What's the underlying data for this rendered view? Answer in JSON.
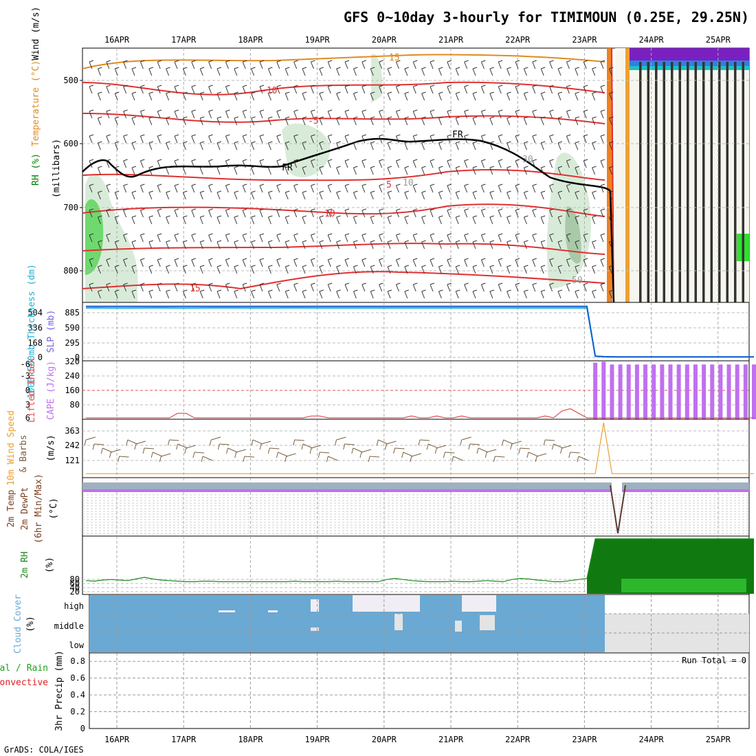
{
  "title": "GFS 0~10day 3-hourly for TIMIMOUN (0.25E, 29.25N)",
  "credit": "GrADS: COLA/IGES",
  "colors": {
    "temperature": "#e03030",
    "freezing": "#000000",
    "rh_fill": "#d8ebd8",
    "slp": "#1060d0",
    "thickness": "#20b0d0",
    "cape": "#c070f0",
    "lifted_index": "#e05050",
    "wind_speed": "#e8a030",
    "barbs": "#7a6040",
    "rh2m": "#1a8a1a",
    "cloud": "#6aa9d4",
    "rain": "#20a020",
    "convective": "#e02020"
  },
  "dates": [
    "16APR",
    "17APR",
    "18APR",
    "19APR",
    "20APR",
    "21APR",
    "22APR",
    "23APR",
    "24APR",
    "25APR"
  ],
  "panels": {
    "upper": {
      "ylabel_wind": "Wind (m/s)",
      "ylabel_temp": "Temperature (°C)",
      "ylabel_rh": "RH (%)",
      "ylabel_p": "(millibars)",
      "yticks": [
        "500",
        "600",
        "700",
        "800"
      ],
      "contour_labels": {
        "t15": "15",
        "tm10": "-10",
        "tm5": "-5",
        "t5": "5",
        "t10": "10",
        "t15b": "15",
        "fr1": "FR",
        "fr2": "FR",
        "rh30": "30",
        "rh10": "10",
        "rh50": "50"
      }
    },
    "slp": {
      "ylabel_thk": "1000-500mb Thickness (dm)",
      "ylabel_slp": "SLP (mb)",
      "left_ticks": [
        "504",
        "336",
        "168",
        "0"
      ],
      "right_ticks": [
        "885",
        "590",
        "295",
        "0"
      ]
    },
    "cape": {
      "ylabel_li": "Lifted Index",
      "ylabel_cape": "CAPE (J/kg)",
      "left_ticks": [
        "-6",
        "-3",
        "0",
        "3",
        "6"
      ],
      "right_ticks": [
        "320",
        "240",
        "160",
        "80"
      ]
    },
    "wind10": {
      "ylabel_speed": "10m Wind Speed",
      "ylabel_barbs": "& Barbs",
      "ylabel_unit": "(m/s)",
      "ticks": [
        "363",
        "242",
        "121"
      ]
    },
    "temp2m": {
      "ylabel_1": "2m Temp",
      "ylabel_2": "2m DewPt",
      "ylabel_3": "(6hr Min/Max)",
      "ylabel_unit": "(°C)"
    },
    "rh2m": {
      "ylabel": "2m RH",
      "ylabel_unit": "(%)",
      "ticks": [
        "80",
        "60",
        "40",
        "20"
      ]
    },
    "cloud": {
      "ylabel": "Cloud Cover",
      "ylabel_unit": "(%)",
      "levels": [
        "high",
        "middle",
        "low"
      ]
    },
    "precip": {
      "ylabel_1": "Total / Rain",
      "ylabel_2": "Convective",
      "ylabel_3": "3hr Precip (mm)",
      "ticks": [
        "0.8",
        "0.6",
        "0.4",
        "0.2",
        "0"
      ],
      "run_total": "Run Total = 0"
    }
  },
  "chart_data": {
    "type": "line",
    "x_start": "15APR 12Z",
    "x_step_hours": 3,
    "x_ticks": [
      "16APR",
      "17APR",
      "18APR",
      "19APR",
      "20APR",
      "21APR",
      "22APR",
      "23APR",
      "24APR",
      "25APR"
    ],
    "series": [
      {
        "name": "SLP (mb)",
        "values": [
          1020,
          1021,
          1021,
          1020,
          1020,
          1019,
          1020,
          1020,
          1021,
          1021,
          1020,
          1020,
          1020,
          1019,
          1020,
          1020,
          1021,
          1021,
          1021,
          1020,
          1020,
          1020,
          1020,
          1020,
          1021,
          1021,
          1021,
          1020,
          1020,
          1020,
          1020,
          1020,
          1020,
          1020,
          1020,
          1020,
          1020,
          1020,
          1020,
          1020,
          1020,
          1020,
          1020,
          1020,
          1020,
          1020,
          1020,
          1020,
          1020,
          1020,
          1020,
          1020,
          1020,
          1020,
          1020,
          1020,
          1020,
          1020,
          1020,
          1020,
          1020,
          25,
          15,
          12,
          10,
          10,
          10,
          10,
          10,
          10,
          10,
          10,
          10,
          10,
          10,
          10,
          10,
          10,
          10,
          10,
          10
        ]
      },
      {
        "name": "1000-500mb Thickness (dm)",
        "values": [
          580,
          582,
          581,
          580,
          580,
          580,
          581,
          581,
          582,
          582,
          581,
          580,
          580,
          580,
          581,
          582,
          582,
          582,
          582,
          581,
          581,
          581,
          581,
          581,
          582,
          582,
          582,
          581,
          581,
          581,
          581,
          581,
          581,
          581,
          581,
          581,
          581,
          581,
          581,
          581,
          581,
          581,
          581,
          581,
          581,
          581,
          581,
          581,
          581,
          581,
          581,
          581,
          581,
          581,
          581,
          581,
          581,
          581,
          581,
          581,
          581,
          14,
          8,
          6,
          5,
          5,
          5,
          5,
          5,
          5,
          5,
          5,
          5,
          5,
          5,
          5,
          5,
          5,
          5,
          5,
          5
        ]
      },
      {
        "name": "CAPE (J/kg)",
        "values": [
          0,
          0,
          0,
          0,
          0,
          0,
          0,
          0,
          0,
          0,
          0,
          0,
          0,
          0,
          0,
          0,
          0,
          0,
          0,
          0,
          0,
          0,
          0,
          0,
          0,
          0,
          0,
          0,
          0,
          0,
          0,
          0,
          0,
          0,
          0,
          0,
          0,
          0,
          0,
          0,
          0,
          0,
          0,
          0,
          0,
          0,
          0,
          0,
          0,
          0,
          0,
          0,
          0,
          0,
          0,
          0,
          0,
          0,
          0,
          0,
          0,
          310,
          315,
          300,
          300,
          300,
          300,
          300,
          300,
          300,
          300,
          300,
          300,
          300,
          300,
          300,
          300,
          300,
          300,
          300,
          300
        ]
      },
      {
        "name": "Lifted Index",
        "values": [
          6,
          6,
          6,
          6,
          6,
          6,
          6,
          6,
          6,
          6,
          6,
          5,
          5,
          6,
          6,
          6,
          6,
          6,
          6,
          6,
          6,
          6,
          6,
          6,
          6,
          6,
          6,
          5.6,
          5.6,
          6,
          6,
          6,
          6,
          6,
          6,
          6,
          6,
          6,
          6,
          5.6,
          6,
          6,
          5.6,
          6,
          6,
          5.6,
          6,
          6,
          6,
          6,
          6,
          6,
          6,
          6,
          6,
          5.6,
          6,
          4.5,
          4,
          5,
          6,
          6,
          6,
          6,
          6,
          6,
          6,
          6,
          6,
          6,
          6,
          6,
          6,
          6,
          6,
          6,
          6,
          6,
          6,
          6,
          6
        ]
      },
      {
        "name": "10m Wind Speed (m/s)",
        "values": [
          4,
          4,
          4,
          4,
          4,
          4,
          4,
          4,
          4,
          4,
          4,
          4,
          4,
          4,
          4,
          4,
          4,
          4,
          4,
          4,
          4,
          4,
          4,
          4,
          4,
          4,
          4,
          4,
          4,
          4,
          4,
          4,
          4,
          4,
          4,
          4,
          4,
          4,
          4,
          4,
          4,
          4,
          4,
          4,
          4,
          4,
          4,
          4,
          4,
          4,
          4,
          4,
          4,
          4,
          4,
          4,
          4,
          4,
          4,
          4,
          4,
          4,
          363,
          4,
          4,
          4,
          4,
          4,
          4,
          4,
          4,
          4,
          4,
          4,
          4,
          4,
          4,
          4,
          4,
          4,
          4
        ]
      },
      {
        "name": "2m RH (%)",
        "values": [
          24,
          23,
          25,
          26,
          25,
          24,
          27,
          30,
          27,
          25,
          24,
          23,
          22,
          22,
          23,
          23,
          22,
          22,
          22,
          22,
          22,
          22,
          22,
          22,
          22,
          23,
          22,
          22,
          22,
          22,
          23,
          22,
          22,
          22,
          22,
          22,
          26,
          28,
          26,
          24,
          23,
          22,
          22,
          22,
          23,
          22,
          22,
          23,
          24,
          23,
          22,
          26,
          28,
          27,
          25,
          24,
          22,
          22,
          24,
          26,
          28,
          100,
          100,
          100,
          100,
          100,
          100,
          100,
          100,
          100,
          100,
          100,
          100,
          100,
          100,
          100,
          100,
          100,
          100,
          100,
          100
        ]
      }
    ],
    "precip_total": 0,
    "ylim_precip": [
      0,
      0.9
    ]
  }
}
